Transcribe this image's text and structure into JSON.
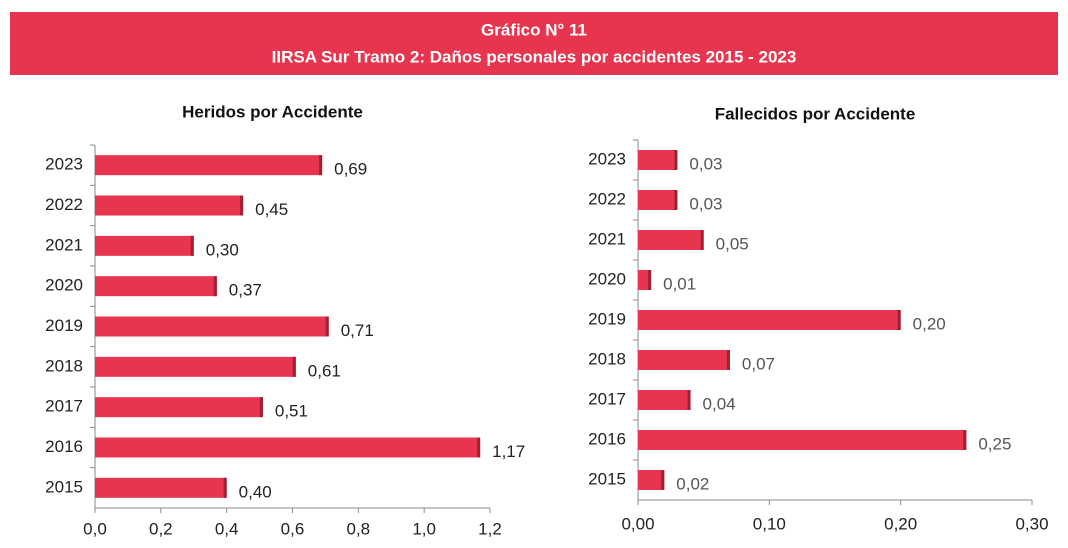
{
  "header": {
    "title": "Gráfico N° 11",
    "subtitle": "IIRSA Sur Tramo 2: Daños personales por accidentes 2015 - 2023"
  },
  "chart_data": [
    {
      "type": "barh",
      "title": "Heridos por Accidente",
      "color": "#e8354f",
      "categories": [
        "2015",
        "2016",
        "2017",
        "2018",
        "2019",
        "2020",
        "2021",
        "2022",
        "2023"
      ],
      "values": [
        0.4,
        1.17,
        0.51,
        0.61,
        0.71,
        0.37,
        0.3,
        0.45,
        0.69
      ],
      "value_labels": [
        "0,40",
        "1,17",
        "0,51",
        "0,61",
        "0,71",
        "0,37",
        "0,30",
        "0,45",
        "0,69"
      ],
      "xlim": [
        0,
        1.2
      ],
      "xticks": [
        {
          "value": 0,
          "label": "0,0"
        },
        {
          "value": 0.2,
          "label": "0,2"
        },
        {
          "value": 0.4,
          "label": "0,4"
        },
        {
          "value": 0.6,
          "label": "0,6"
        },
        {
          "value": 0.8,
          "label": "0,8"
        },
        {
          "value": 1.0,
          "label": "1,0"
        },
        {
          "value": 1.2,
          "label": "1,2"
        }
      ]
    },
    {
      "type": "barh",
      "title": "Fallecidos por Accidente",
      "color": "#e8354f",
      "categories": [
        "2015",
        "2016",
        "2017",
        "2018",
        "2019",
        "2020",
        "2021",
        "2022",
        "2023"
      ],
      "values": [
        0.02,
        0.25,
        0.04,
        0.07,
        0.2,
        0.01,
        0.05,
        0.03,
        0.03
      ],
      "value_labels": [
        "0,02",
        "0,25",
        "0,04",
        "0,07",
        "0,20",
        "0,01",
        "0,05",
        "0,03",
        "0,03"
      ],
      "xlim": [
        0,
        0.3
      ],
      "xticks": [
        {
          "value": 0,
          "label": "0,00"
        },
        {
          "value": 0.1,
          "label": "0,10"
        },
        {
          "value": 0.2,
          "label": "0,20"
        },
        {
          "value": 0.3,
          "label": "0,30"
        }
      ]
    }
  ]
}
